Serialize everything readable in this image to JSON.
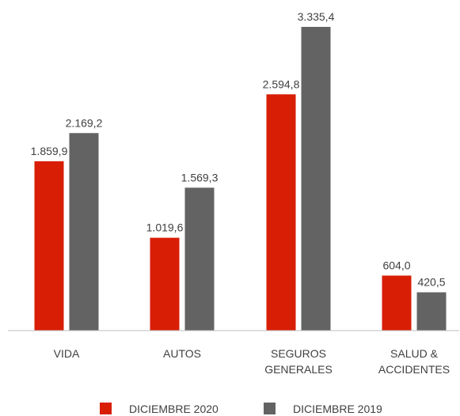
{
  "chart_data": {
    "type": "bar",
    "categories": [
      [
        "VIDA"
      ],
      [
        "AUTOS"
      ],
      [
        "SEGUROS",
        "GENERALES"
      ],
      [
        "SALUD &",
        "ACCIDENTES"
      ]
    ],
    "series": [
      {
        "name": "DICIEMBRE 2020",
        "color": "#d81e05",
        "values": [
          1859.9,
          1019.6,
          2594.8,
          604.0
        ],
        "labels": [
          "1.859,9",
          "1.019,6",
          "2.594,8",
          "604,0"
        ]
      },
      {
        "name": "DICIEMBRE 2019",
        "color": "#636363",
        "values": [
          2169.2,
          1569.3,
          3335.4,
          420.5
        ],
        "labels": [
          "2.169,2",
          "1.569,3",
          "3.335,4",
          "420,5"
        ]
      }
    ],
    "ylim": [
      0,
      3335.4
    ],
    "grid": false,
    "legend_position": "bottom",
    "title": "",
    "xlabel": "",
    "ylabel": ""
  }
}
